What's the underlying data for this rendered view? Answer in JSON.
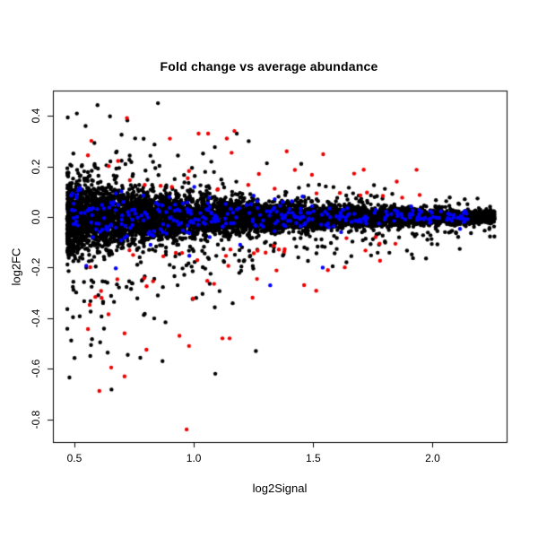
{
  "chart_data": {
    "type": "scatter",
    "title": "Fold change vs average abundance",
    "xlabel": "log2Signal",
    "ylabel": "log2FC",
    "xlim": [
      0.41,
      2.31
    ],
    "ylim": [
      -0.89,
      0.5
    ],
    "x_ticks": [
      {
        "value": 0.5,
        "label": "0.5"
      },
      {
        "value": 1.0,
        "label": "1.0"
      },
      {
        "value": 1.5,
        "label": "1.5"
      },
      {
        "value": 2.0,
        "label": "2.0"
      }
    ],
    "y_ticks": [
      {
        "value": 0.4,
        "label": "0.4"
      },
      {
        "value": 0.2,
        "label": "0.2"
      },
      {
        "value": 0.0,
        "label": "0.0"
      },
      {
        "value": -0.2,
        "label": "-0.2"
      },
      {
        "value": -0.4,
        "label": "-0.4"
      },
      {
        "value": -0.6,
        "label": "-0.6"
      },
      {
        "value": -0.8,
        "label": "-0.8"
      }
    ],
    "grid": false,
    "legend": false,
    "frame_color": "#000000",
    "background": "#ffffff",
    "point_shape": "filled-circle",
    "point_radius_px": 2.2,
    "seed": 7,
    "series": [
      {
        "name": "background-points",
        "description": "dense black funnel-shaped cloud centered on log2FC = 0, widest at low signal (~±0.15) converging to a tip near x = 2.26",
        "color": "#000000",
        "model": "core",
        "count": 6500,
        "x_min": 0.47,
        "x_max": 2.26,
        "x_power": 1.3,
        "sd_at_xmin": 0.075,
        "sd_decay": 0.15,
        "tail_fraction": 0.05,
        "tail_scale": [
          2.5,
          6.0
        ],
        "tail_negative_bias": 0.62
      },
      {
        "name": "blue-points",
        "description": "blue highlighted probes scattered through the core band, mostly |log2FC| < 0.15",
        "color": "#0000FF",
        "model": "core",
        "count": 320,
        "x_min": 0.48,
        "x_max": 2.15,
        "x_power": 1.2,
        "sd_at_xmin": 0.062,
        "sd_decay": 0.2,
        "tail_fraction": 0.04,
        "tail_scale": [
          2.0,
          3.5
        ],
        "tail_negative_bias": 0.65
      },
      {
        "name": "red-points",
        "description": "red highlighted probes on the periphery of the cloud, |log2FC| roughly 0.13-0.45, a few deep negatives to -0.84",
        "color": "#EE0000",
        "model": "periphery",
        "count": 78,
        "x_min": 0.55,
        "x_max": 1.95,
        "x_power": 1.15,
        "decay": 0.42,
        "base_mag": 0.13,
        "extra_mag": 0.32,
        "negative_bias": 0.55
      }
    ],
    "highlight_points": [
      {
        "x": 0.85,
        "y": 0.45,
        "series": "background-points"
      },
      {
        "x": 1.18,
        "y": 0.33,
        "series": "background-points"
      },
      {
        "x": 1.23,
        "y": 0.3,
        "series": "background-points"
      },
      {
        "x": 1.45,
        "y": 0.21,
        "series": "background-points"
      },
      {
        "x": 1.09,
        "y": -0.62,
        "series": "background-points"
      },
      {
        "x": 1.26,
        "y": -0.53,
        "series": "background-points"
      },
      {
        "x": 0.9,
        "y": 0.31,
        "series": "red-points"
      },
      {
        "x": 1.02,
        "y": 0.33,
        "series": "red-points"
      },
      {
        "x": 1.06,
        "y": 0.33,
        "series": "red-points"
      },
      {
        "x": 1.17,
        "y": 0.34,
        "series": "red-points"
      },
      {
        "x": 1.85,
        "y": 0.14,
        "series": "red-points"
      },
      {
        "x": 0.71,
        "y": -0.46,
        "series": "red-points"
      },
      {
        "x": 0.94,
        "y": -0.47,
        "series": "red-points"
      },
      {
        "x": 0.98,
        "y": -0.51,
        "series": "red-points"
      },
      {
        "x": 1.12,
        "y": -0.48,
        "series": "red-points"
      },
      {
        "x": 1.15,
        "y": -0.48,
        "series": "red-points"
      },
      {
        "x": 0.71,
        "y": -0.63,
        "series": "red-points"
      },
      {
        "x": 0.97,
        "y": -0.84,
        "series": "red-points"
      },
      {
        "x": 1.54,
        "y": -0.2,
        "series": "blue-points"
      },
      {
        "x": 1.32,
        "y": -0.27,
        "series": "blue-points"
      }
    ]
  }
}
